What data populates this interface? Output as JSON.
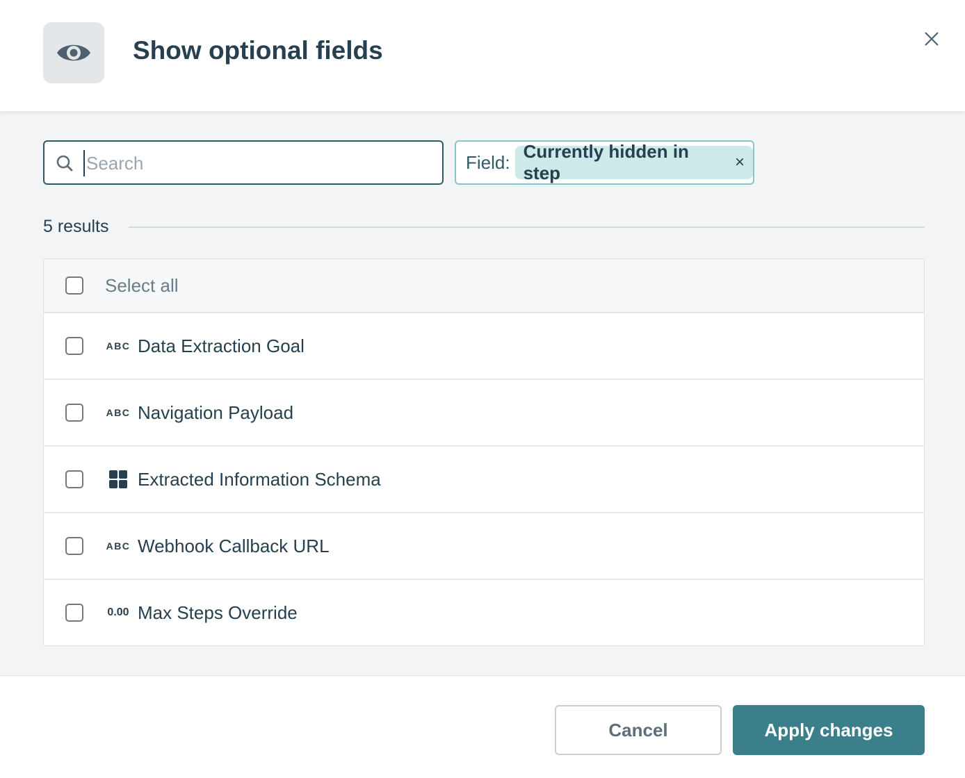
{
  "header": {
    "title": "Show optional fields",
    "icon": "eye-icon"
  },
  "search": {
    "placeholder": "Search",
    "value": ""
  },
  "filter": {
    "label": "Field:",
    "chip": "Currently hidden in step",
    "chip_remove": "×"
  },
  "results": {
    "count_label": "5 results"
  },
  "list": {
    "select_all": "Select all",
    "items": [
      {
        "type_icon": "ABC",
        "label": "Data Extraction Goal",
        "checked": false
      },
      {
        "type_icon": "ABC",
        "label": "Navigation Payload",
        "checked": false
      },
      {
        "type_icon": "grid-icon",
        "label": "Extracted Information Schema",
        "checked": false
      },
      {
        "type_icon": "ABC",
        "label": "Webhook Callback URL",
        "checked": false
      },
      {
        "type_icon": "0.00",
        "label": "Max Steps Override",
        "checked": false
      }
    ]
  },
  "footer": {
    "cancel": "Cancel",
    "apply": "Apply changes"
  },
  "colors": {
    "accent": "#3a7f8a",
    "chip_bg": "#cdeaea",
    "title": "#26404f"
  }
}
